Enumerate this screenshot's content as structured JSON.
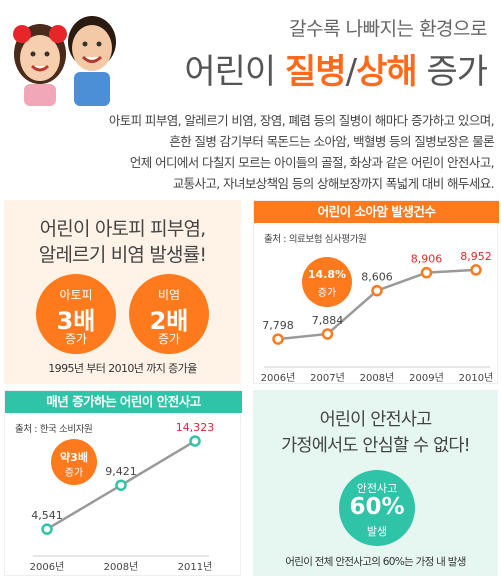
{
  "header": {
    "subtitle": "갈수록 나빠지는 환경으로",
    "title_prefix": "어린이",
    "title_accent1": "질병",
    "title_slash": "/",
    "title_accent2": "상해",
    "title_suffix": "증가",
    "intro_lines": [
      "아토피 피부염, 알레르기 비염, 장염, 폐렴 등의 질병이 해마다 증가하고 있으며,",
      "흔한 질병 감기부터 목돈드는 소아암, 백혈병 등의 질병보장은 물론",
      "언제 어디에서 다칠지 모르는 아이들의 골절, 화상과 같은 어린이 안전사고,",
      "교통사고, 자녀보상책임 등의 상해보장까지 폭넓게 대비 해두세요."
    ]
  },
  "panel_atopy": {
    "title1": "어린이 아토피 피부염,",
    "title2": "알레르기 비염 발생률!",
    "circle1": {
      "top": "아토피",
      "big": "3배",
      "bottom": "증가"
    },
    "circle2": {
      "top": "비염",
      "big": "2배",
      "bottom": "증가"
    },
    "note": "1995년 부터 2010년 까지 증가율"
  },
  "panel_tonsil": {
    "title": "어린이 소아암 발생건수",
    "source": "출처 : 의료보험 심사평가원",
    "badge_value": "14.8%",
    "badge_label": "증가"
  },
  "panel_safety": {
    "title": "매년 증가하는 어린이 안전사고",
    "source": "출처 : 한국 소비자원",
    "badge_value": "약3배",
    "badge_label": "증가"
  },
  "panel_home": {
    "title1": "어린이 안전사고",
    "title2": "가정에서도 안심할 수 없다!",
    "circle_top": "안전사고",
    "circle_big": "60%",
    "circle_bottom": "발생",
    "note": "어린이 전체 안전사고의 60%는 가정 내 발생"
  },
  "chart_data": [
    {
      "type": "line",
      "title": "어린이 소아암 발생건수",
      "categories": [
        "2006년",
        "2007년",
        "2008년",
        "2009년",
        "2010년"
      ],
      "values": [
        7798,
        7884,
        8606,
        8906,
        8952
      ],
      "labels": [
        "7,798",
        "7,884",
        "8,606",
        "8,906",
        "8,952"
      ],
      "highlight_from_index": 3,
      "ylim": [
        7600,
        9100
      ],
      "line_color": "#9a9a9a",
      "marker_color": "#ff7a1c",
      "highlight_color": "#e8262a"
    },
    {
      "type": "line",
      "title": "매년 증가하는 어린이 안전사고",
      "categories": [
        "2006년",
        "2008년",
        "2011년"
      ],
      "values": [
        4541,
        9421,
        14323
      ],
      "labels": [
        "4,541",
        "9,421",
        "14,323"
      ],
      "highlight_from_index": 2,
      "ylim": [
        3000,
        15000
      ],
      "line_color": "#9a9a9a",
      "marker_color": "#2fc4a8",
      "highlight_color": "#e8262a"
    }
  ],
  "colors": {
    "orange": "#ff7a1c",
    "teal": "#2fc4a8",
    "red": "#e8262a"
  }
}
